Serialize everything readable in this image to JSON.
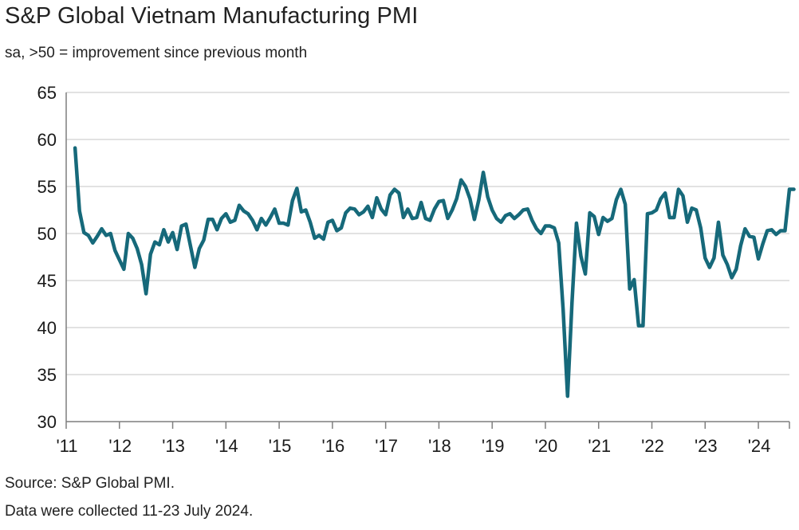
{
  "header": {
    "title": "S&P Global Vietnam Manufacturing PMI",
    "subtitle": "sa, >50 = improvement since previous month"
  },
  "footer": {
    "source": "Source: S&P Global PMI.",
    "note": "Data were collected 11-23 July 2024."
  },
  "colors": {
    "line": "#16697a",
    "grid": "#d9d9d9",
    "axis": "#7f7f7f"
  },
  "chart_data": {
    "type": "line",
    "title": "S&P Global Vietnam Manufacturing PMI",
    "subtitle": "sa, >50 = improvement since previous month",
    "ylim": [
      30,
      65
    ],
    "yticks": [
      30,
      35,
      40,
      45,
      50,
      55,
      60,
      65
    ],
    "xlim": [
      "2011-01",
      "2024-08"
    ],
    "xtick_labels": [
      "'11",
      "'12",
      "'13",
      "'14",
      "'15",
      "'16",
      "'17",
      "'18",
      "'19",
      "'20",
      "'21",
      "'22",
      "'23",
      "'24"
    ],
    "grid": "horizontal",
    "series": [
      {
        "start": "2011-03",
        "frequency": "monthly",
        "values": [
          59.1,
          52.4,
          50.1,
          49.8,
          49.0,
          49.7,
          50.5,
          49.8,
          50.0,
          48.2,
          47.2,
          46.2,
          50.0,
          49.5,
          48.4,
          46.7,
          43.6,
          47.8,
          49.1,
          48.8,
          50.4,
          49.1,
          50.1,
          48.3,
          50.8,
          51.0,
          48.7,
          46.4,
          48.4,
          49.3,
          51.5,
          51.5,
          50.4,
          51.6,
          52.1,
          51.2,
          51.4,
          53.0,
          52.4,
          52.1,
          51.4,
          50.4,
          51.6,
          50.9,
          51.7,
          52.6,
          51.1,
          51.1,
          50.9,
          53.5,
          54.8,
          52.3,
          52.5,
          51.2,
          49.5,
          49.8,
          49.4,
          51.2,
          51.4,
          50.3,
          50.6,
          52.2,
          52.7,
          52.6,
          52.0,
          52.3,
          52.9,
          51.7,
          53.8,
          52.6,
          52.0,
          54.1,
          54.7,
          54.3,
          51.7,
          52.6,
          51.6,
          51.7,
          53.3,
          51.6,
          51.4,
          52.6,
          53.4,
          53.5,
          51.6,
          52.5,
          53.7,
          55.7,
          55.0,
          53.7,
          51.5,
          53.6,
          56.5,
          53.9,
          52.5,
          51.6,
          51.2,
          51.9,
          52.1,
          51.6,
          52.0,
          52.5,
          52.6,
          51.4,
          50.5,
          50.0,
          50.8,
          50.8,
          50.6,
          49.0,
          41.9,
          32.7,
          42.7,
          51.1,
          47.6,
          45.7,
          52.2,
          51.8,
          49.9,
          51.7,
          51.3,
          51.6,
          53.6,
          54.7,
          53.1,
          44.1,
          45.1,
          40.2,
          40.2,
          52.1,
          52.2,
          52.5,
          53.7,
          54.3,
          51.7,
          51.7,
          54.7,
          54.0,
          51.2,
          52.7,
          52.5,
          50.6,
          47.4,
          46.4,
          47.4,
          51.2,
          47.7,
          46.7,
          45.3,
          46.2,
          48.7,
          50.5,
          49.7,
          49.6,
          47.3,
          48.9,
          50.3,
          50.4,
          49.9,
          50.3,
          50.3,
          54.7,
          54.7
        ]
      }
    ]
  }
}
